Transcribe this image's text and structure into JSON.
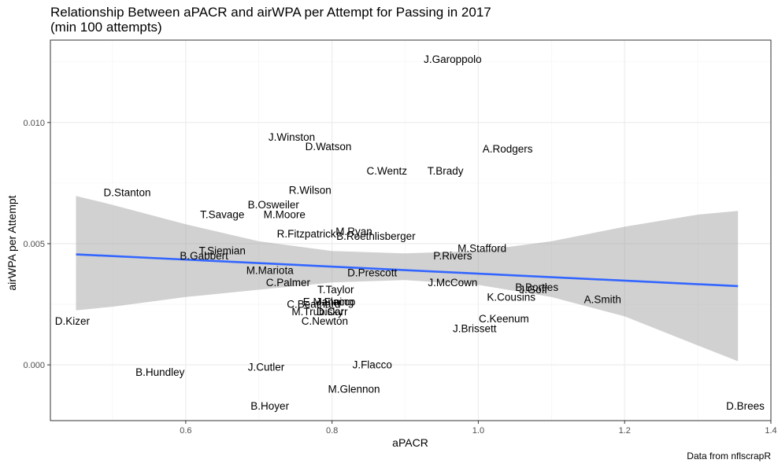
{
  "chart_data": {
    "type": "scatter",
    "title": "Relationship Between aPACR and airWPA per Attempt for Passing in 2017",
    "subtitle": "(min 100 attempts)",
    "xlabel": "aPACR",
    "ylabel": "airWPA per Attempt",
    "caption": "Data from nflscrapR",
    "xlim": [
      0.415,
      1.4
    ],
    "ylim": [
      -0.0023,
      0.0134
    ],
    "x_ticks": [
      0.6,
      0.8,
      1.0,
      1.2,
      1.4
    ],
    "x_tick_labels": [
      "0.6",
      "0.8",
      "1.0",
      "1.2",
      "1.4"
    ],
    "y_ticks": [
      0.0,
      0.005,
      0.01
    ],
    "y_tick_labels": [
      "0.000",
      "0.005",
      "0.010"
    ],
    "grid": true,
    "colors": {
      "trend_line": "#3366ff",
      "band": "#999999",
      "panel_border": "#333333",
      "grid": "#ebebeb"
    },
    "trend": {
      "x": [
        0.45,
        1.355
      ],
      "y": [
        0.00456,
        0.00325
      ]
    },
    "band": {
      "x": [
        0.45,
        0.5,
        0.6,
        0.7,
        0.8,
        0.9,
        1.0,
        1.1,
        1.2,
        1.3,
        1.355
      ],
      "upper": [
        0.00697,
        0.0066,
        0.0058,
        0.0051,
        0.0047,
        0.0046,
        0.0047,
        0.0051,
        0.0057,
        0.0062,
        0.00635
      ],
      "lower": [
        0.00225,
        0.0024,
        0.0028,
        0.0031,
        0.0034,
        0.0035,
        0.0033,
        0.0028,
        0.002,
        0.0008,
        0.00015
      ]
    },
    "points": [
      {
        "label": "J.Garoppolo",
        "x": 0.965,
        "y": 0.0126
      },
      {
        "label": "J.Winston",
        "x": 0.745,
        "y": 0.0094
      },
      {
        "label": "D.Watson",
        "x": 0.795,
        "y": 0.009
      },
      {
        "label": "A.Rodgers",
        "x": 1.04,
        "y": 0.0089
      },
      {
        "label": "C.Wentz",
        "x": 0.875,
        "y": 0.008
      },
      {
        "label": "T.Brady",
        "x": 0.955,
        "y": 0.008
      },
      {
        "label": "R.Wilson",
        "x": 0.77,
        "y": 0.0072
      },
      {
        "label": "D.Stanton",
        "x": 0.52,
        "y": 0.0071
      },
      {
        "label": "B.Osweiler",
        "x": 0.72,
        "y": 0.0066
      },
      {
        "label": "T.Savage",
        "x": 0.65,
        "y": 0.0062
      },
      {
        "label": "M.Moore",
        "x": 0.735,
        "y": 0.0062
      },
      {
        "label": "R.Fitzpatrick",
        "x": 0.765,
        "y": 0.0054
      },
      {
        "label": "M.Ryan",
        "x": 0.83,
        "y": 0.0055
      },
      {
        "label": "B.Roethlisberger",
        "x": 0.86,
        "y": 0.0053
      },
      {
        "label": "M.Stafford",
        "x": 1.005,
        "y": 0.0048
      },
      {
        "label": "T.Siemian",
        "x": 0.65,
        "y": 0.0047
      },
      {
        "label": "P.Rivers",
        "x": 0.965,
        "y": 0.0045
      },
      {
        "label": "B.Gabbert",
        "x": 0.625,
        "y": 0.0045
      },
      {
        "label": "M.Mariota",
        "x": 0.715,
        "y": 0.0039
      },
      {
        "label": "D.Prescott",
        "x": 0.855,
        "y": 0.0038
      },
      {
        "label": "J.McCown",
        "x": 0.965,
        "y": 0.0034
      },
      {
        "label": "C.Palmer",
        "x": 0.74,
        "y": 0.0034
      },
      {
        "label": "B.Bortles",
        "x": 1.08,
        "y": 0.0032
      },
      {
        "label": "T.Taylor",
        "x": 0.805,
        "y": 0.0031
      },
      {
        "label": "J.Goff",
        "x": 1.075,
        "y": 0.0031
      },
      {
        "label": "K.Cousins",
        "x": 1.045,
        "y": 0.0028
      },
      {
        "label": "A.Smith",
        "x": 1.17,
        "y": 0.0027
      },
      {
        "label": "E.Manning",
        "x": 0.795,
        "y": 0.0026
      },
      {
        "label": "J.Flacco",
        "x": 0.805,
        "y": 0.0026
      },
      {
        "label": "C.Beathard",
        "x": 0.775,
        "y": 0.0025
      },
      {
        "label": "M.Trubisky",
        "x": 0.78,
        "y": 0.0022
      },
      {
        "label": "D.Carr",
        "x": 0.8,
        "y": 0.0022
      },
      {
        "label": "C.Newton",
        "x": 0.79,
        "y": 0.0018
      },
      {
        "label": "D.Kizer",
        "x": 0.445,
        "y": 0.0018
      },
      {
        "label": "C.Keenum",
        "x": 1.035,
        "y": 0.0019
      },
      {
        "label": "J.Brissett",
        "x": 0.995,
        "y": 0.0015
      },
      {
        "label": "J.Flacco",
        "x": 0.855,
        "y": 0.0
      },
      {
        "label": "J.Cutler",
        "x": 0.71,
        "y": -0.0001
      },
      {
        "label": "B.Hundley",
        "x": 0.565,
        "y": -0.0003
      },
      {
        "label": "M.Glennon",
        "x": 0.83,
        "y": -0.001
      },
      {
        "label": "B.Hoyer",
        "x": 0.715,
        "y": -0.0017
      },
      {
        "label": "D.Brees",
        "x": 1.365,
        "y": -0.0017
      }
    ]
  }
}
